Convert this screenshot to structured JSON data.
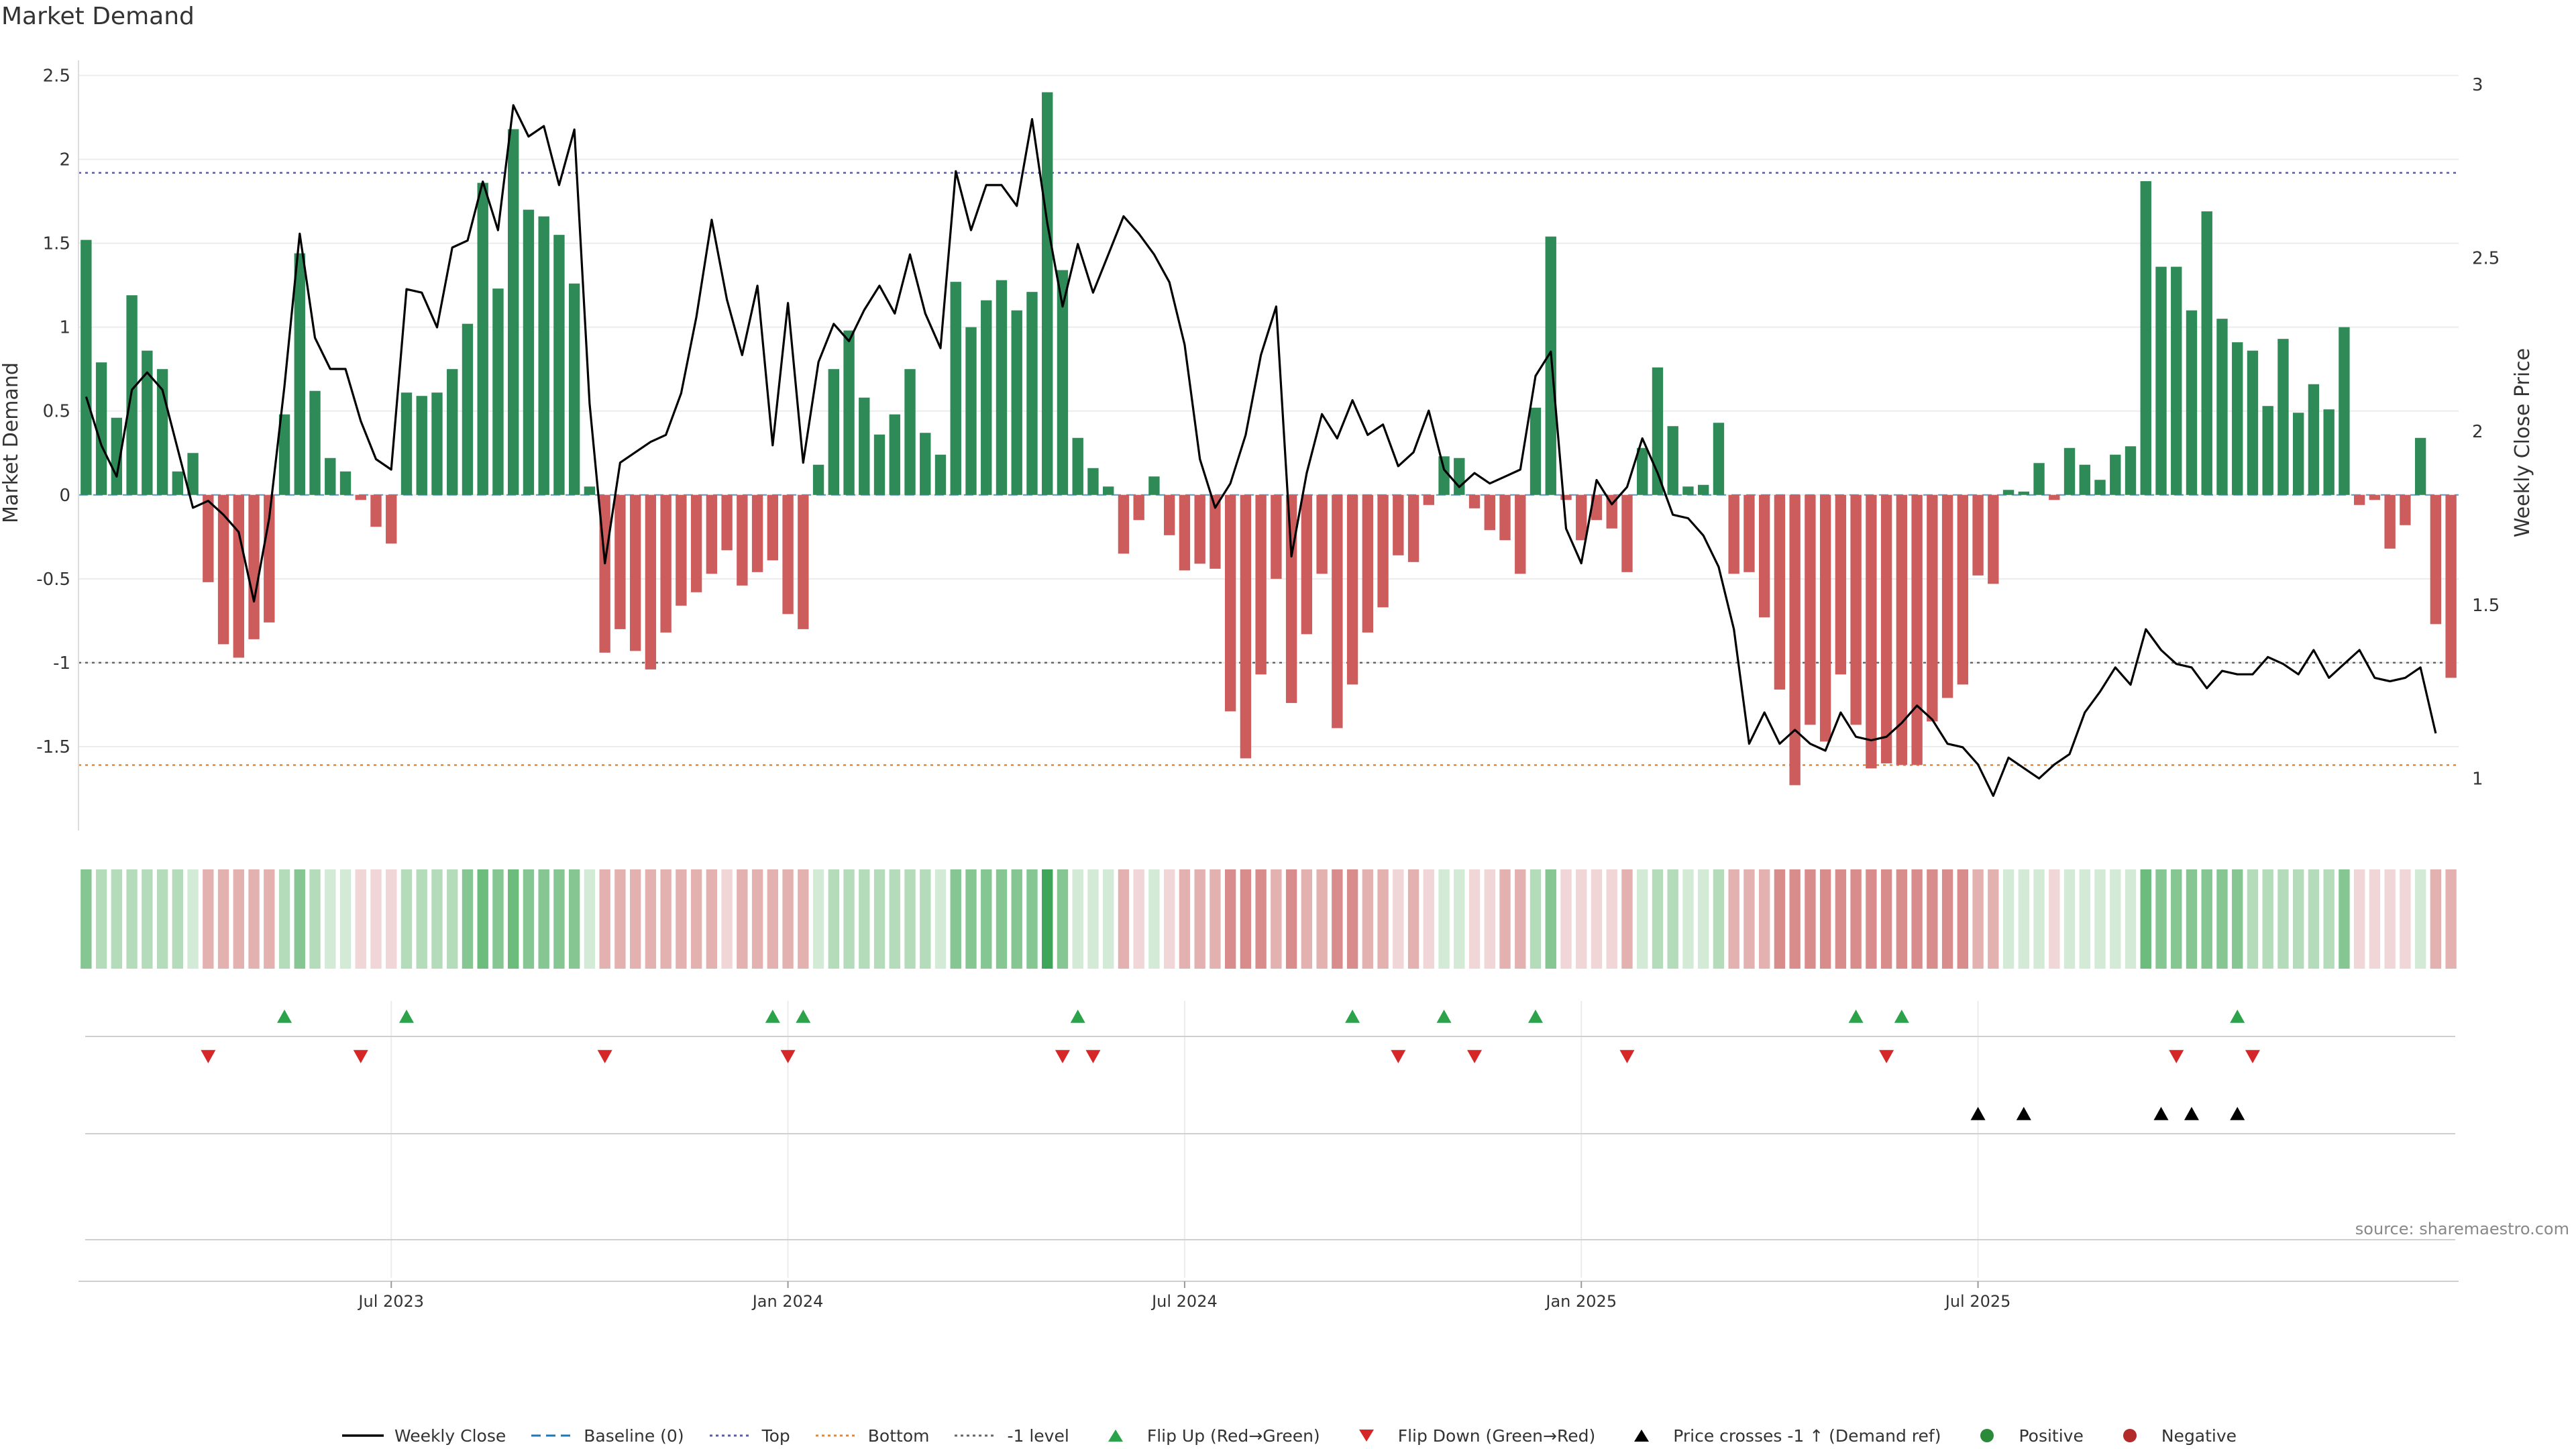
{
  "title": "Market Demand",
  "source": "source: sharemaestro.com",
  "legend": [
    {
      "label": "Weekly Close",
      "kind": "line",
      "color": "#000000"
    },
    {
      "label": "Baseline (0)",
      "kind": "dash",
      "color": "#1f77b4"
    },
    {
      "label": "Top",
      "kind": "dot",
      "color": "#5b5ba8"
    },
    {
      "label": "Bottom",
      "kind": "dot",
      "color": "#e0883a"
    },
    {
      "label": "-1 level",
      "kind": "dot",
      "color": "#666666"
    },
    {
      "label": "Flip Up (Red→Green)",
      "kind": "tri-up",
      "color": "#2ca24b"
    },
    {
      "label": "Flip Down (Green→Red)",
      "kind": "tri-down",
      "color": "#d62728"
    },
    {
      "label": "Price crosses -1 ↑ (Demand ref)",
      "kind": "tri-up",
      "color": "#000000"
    },
    {
      "label": "Positive",
      "kind": "circle",
      "color": "#2a8a3a"
    },
    {
      "label": "Negative",
      "kind": "circle",
      "color": "#b22a2a"
    }
  ],
  "colors": {
    "positive": "#2e8b57",
    "negative": "#cd5c5c",
    "top": "#5b5ba8",
    "bottom": "#e0883a",
    "minus1": "#666666",
    "baseline": "#1f77b4",
    "flip_up": "#2ca24b",
    "flip_down": "#d62728",
    "cross": "#000000"
  },
  "chart_data": {
    "type": "bar",
    "ylabel": "Market Demand",
    "y2label": "Weekly Close Price",
    "ylim": [
      -2.0,
      2.55
    ],
    "y2lim": [
      0.85,
      3.05
    ],
    "yticks": [
      -1.5,
      -1,
      -0.5,
      0,
      0.5,
      1,
      1.5,
      2,
      2.5
    ],
    "ytick_labels": [
      "-1.5",
      "-1",
      "-0.5",
      "0",
      "0.5",
      "1",
      "1.5",
      "2",
      "2.5"
    ],
    "y2ticks": [
      1,
      1.5,
      2,
      2.5,
      3
    ],
    "y2tick_labels": [
      "1",
      "1.5",
      "2",
      "2.5",
      "3"
    ],
    "xticks": [
      20.5,
      46.5,
      72.5,
      98.5,
      124.5
    ],
    "xtick_labels": [
      "Jul 2023",
      "Jan 2024",
      "Jul 2024",
      "Jan 2025",
      "Jul 2025"
    ],
    "reference_lines": {
      "top": 1.92,
      "bottom": -1.61,
      "minus1": -1.0,
      "baseline": 0
    },
    "grid": true,
    "demand": [
      1.52,
      0.79,
      0.46,
      1.19,
      0.86,
      0.75,
      0.14,
      0.25,
      -0.52,
      -0.89,
      -0.97,
      -0.86,
      -0.76,
      0.48,
      1.44,
      0.62,
      0.22,
      0.14,
      -0.03,
      -0.19,
      -0.29,
      0.61,
      0.59,
      0.61,
      0.75,
      1.02,
      1.86,
      1.23,
      2.18,
      1.7,
      1.66,
      1.55,
      1.26,
      0.05,
      -0.94,
      -0.8,
      -0.93,
      -1.04,
      -0.82,
      -0.66,
      -0.58,
      -0.47,
      -0.33,
      -0.54,
      -0.46,
      -0.39,
      -0.71,
      -0.8,
      0.18,
      0.75,
      0.98,
      0.58,
      0.36,
      0.48,
      0.75,
      0.37,
      0.24,
      1.27,
      1.0,
      1.16,
      1.28,
      1.1,
      1.21,
      2.4,
      1.34,
      0.34,
      0.16,
      0.05,
      -0.35,
      -0.15,
      0.11,
      -0.24,
      -0.45,
      -0.41,
      -0.44,
      -1.29,
      -1.57,
      -1.07,
      -0.5,
      -1.24,
      -0.83,
      -0.47,
      -1.39,
      -1.13,
      -0.82,
      -0.67,
      -0.36,
      -0.4,
      -0.06,
      0.23,
      0.22,
      -0.08,
      -0.21,
      -0.27,
      -0.47,
      0.52,
      1.54,
      -0.03,
      -0.27,
      -0.15,
      -0.2,
      -0.46,
      0.28,
      0.76,
      0.41,
      0.05,
      0.06,
      0.43,
      -0.47,
      -0.46,
      -0.73,
      -1.16,
      -1.73,
      -1.37,
      -1.47,
      -1.07,
      -1.37,
      -1.63,
      -1.6,
      -1.61,
      -1.61,
      -1.35,
      -1.21,
      -1.13,
      -0.48,
      -0.53,
      0.03,
      0.02,
      0.19,
      -0.03,
      0.28,
      0.18,
      0.09,
      0.24,
      0.29,
      1.87,
      1.36,
      1.36,
      1.1,
      1.69,
      1.05,
      0.91,
      0.86,
      0.53,
      0.93,
      0.49,
      0.66,
      0.51,
      1.0,
      -0.06,
      -0.03,
      -0.32,
      -0.18,
      0.34,
      -0.77,
      -1.09
    ],
    "weekly_close": [
      2.1,
      1.96,
      1.87,
      2.12,
      2.17,
      2.12,
      1.95,
      1.78,
      1.8,
      1.76,
      1.71,
      1.51,
      1.75,
      2.13,
      2.57,
      2.27,
      2.18,
      2.18,
      2.03,
      1.92,
      1.89,
      2.41,
      2.4,
      2.3,
      2.53,
      2.55,
      2.72,
      2.58,
      2.94,
      2.85,
      2.88,
      2.71,
      2.87,
      2.08,
      1.62,
      1.91,
      1.94,
      1.97,
      1.99,
      2.11,
      2.33,
      2.61,
      2.38,
      2.22,
      2.42,
      1.96,
      2.37,
      1.91,
      2.2,
      2.31,
      2.26,
      2.35,
      2.42,
      2.34,
      2.51,
      2.34,
      2.24,
      2.75,
      2.58,
      2.71,
      2.71,
      2.65,
      2.9,
      2.6,
      2.36,
      2.54,
      2.4,
      2.51,
      2.62,
      2.57,
      2.51,
      2.43,
      2.25,
      1.92,
      1.78,
      1.85,
      1.99,
      2.22,
      2.36,
      1.64,
      1.88,
      2.05,
      1.98,
      2.09,
      1.99,
      2.02,
      1.9,
      1.94,
      2.06,
      1.89,
      1.84,
      1.88,
      1.85,
      1.87,
      1.89,
      2.16,
      2.23,
      1.72,
      1.62,
      1.86,
      1.79,
      1.84,
      1.98,
      1.88,
      1.76,
      1.75,
      1.7,
      1.61,
      1.43,
      1.1,
      1.19,
      1.1,
      1.14,
      1.1,
      1.08,
      1.19,
      1.12,
      1.11,
      1.12,
      1.16,
      1.21,
      1.17,
      1.1,
      1.09,
      1.04,
      0.95,
      1.06,
      1.03,
      1.0,
      1.04,
      1.07,
      1.19,
      1.25,
      1.32,
      1.27,
      1.43,
      1.37,
      1.33,
      1.32,
      1.26,
      1.31,
      1.3,
      1.3,
      1.35,
      1.33,
      1.3,
      1.37,
      1.29,
      1.33,
      1.37,
      1.29,
      1.28,
      1.29,
      1.32,
      1.13
    ],
    "flip_up": [
      13,
      21,
      45,
      47,
      65,
      83,
      89,
      95,
      116,
      119,
      141
    ],
    "flip_down": [
      8,
      18,
      34,
      46,
      64,
      66,
      86,
      91,
      101,
      118,
      137,
      142
    ],
    "cross_up": [
      124,
      127,
      136,
      138,
      141
    ],
    "heat_bins": [
      2,
      1,
      1,
      1,
      1,
      1,
      1,
      0,
      -1,
      -1,
      -1,
      -1,
      -1,
      1,
      2,
      1,
      0,
      0,
      0,
      0,
      0,
      1,
      1,
      1,
      1,
      2,
      3,
      2,
      3,
      2,
      2,
      2,
      2,
      0,
      -1,
      -1,
      -1,
      -1,
      -1,
      -1,
      -1,
      -1,
      0,
      -1,
      -1,
      -1,
      -1,
      -1,
      0,
      1,
      1,
      1,
      1,
      1,
      1,
      1,
      0,
      2,
      2,
      2,
      2,
      2,
      2,
      4,
      2,
      0,
      0,
      0,
      -1,
      0,
      0,
      0,
      -1,
      -1,
      -1,
      -2,
      -2,
      -2,
      -1,
      -2,
      -1,
      -1,
      -2,
      -2,
      -1,
      -1,
      0,
      -1,
      0,
      0,
      0,
      0,
      0,
      -1,
      -1,
      1,
      2,
      0,
      0,
      0,
      0,
      -1,
      0,
      1,
      1,
      0,
      0,
      1,
      -1,
      -1,
      -1,
      -2,
      -2,
      -2,
      -2,
      -2,
      -2,
      -2,
      -2,
      -2,
      -2,
      -2,
      -2,
      -2,
      -1,
      -1,
      0,
      0,
      0,
      0,
      0,
      0,
      0,
      0,
      0,
      3,
      2,
      2,
      2,
      2,
      2,
      2,
      1,
      1,
      1,
      1,
      1,
      1,
      2,
      0,
      0,
      0,
      0,
      0,
      -1,
      -1
    ]
  }
}
